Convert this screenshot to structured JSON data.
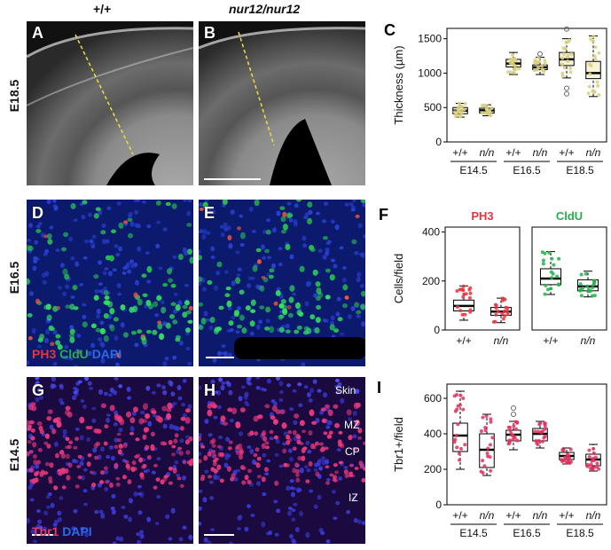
{
  "headers": {
    "col1": "+/+",
    "col2": "nur12/nur12"
  },
  "rows": {
    "r1": "E18.5",
    "r2": "E16.5",
    "r3": "E14.5"
  },
  "panels": {
    "A": "A",
    "B": "B",
    "C": "C",
    "D": "D",
    "E": "E",
    "F": "F",
    "G": "G",
    "H": "H",
    "I": "I"
  },
  "stains": {
    "de": {
      "ph3": "PH3",
      "cldu": "CldU",
      "dapi": "DAPI"
    },
    "gh": {
      "tbr1": "Tbr1",
      "dapi": "DAPI"
    }
  },
  "region_labels": {
    "skin": "Skin",
    "mz": "MZ",
    "cp": "CP",
    "iz": "IZ"
  },
  "colors": {
    "ph3": "#e8343f",
    "cldu": "#22b04b",
    "tbr1": "#e8386a",
    "dapi": "#2a4fd8",
    "yellow_dash": "#e8e23a"
  },
  "chart_data": [
    {
      "id": "C",
      "type": "box",
      "ylabel": "Thickness (µm)",
      "ylim": [
        0,
        1650
      ],
      "yticks": [
        0,
        500,
        1000,
        1500
      ],
      "categories": [
        "+/+",
        "n/n",
        "+/+",
        "n/n",
        "+/+",
        "n/n"
      ],
      "groups": [
        "E14.5",
        "E16.5",
        "E18.5"
      ],
      "boxes": [
        {
          "q1": 410,
          "median": 455,
          "q3": 500,
          "whislo": 360,
          "whishi": 560,
          "outliers": []
        },
        {
          "q1": 420,
          "median": 460,
          "q3": 490,
          "whislo": 380,
          "whishi": 540,
          "outliers": []
        },
        {
          "q1": 1090,
          "median": 1140,
          "q3": 1200,
          "whislo": 980,
          "whishi": 1300,
          "outliers": []
        },
        {
          "q1": 1050,
          "median": 1085,
          "q3": 1120,
          "whislo": 980,
          "whishi": 1230,
          "outliers": [
            1280
          ]
        },
        {
          "q1": 1110,
          "median": 1200,
          "q3": 1300,
          "whislo": 930,
          "whishi": 1500,
          "outliers": [
            1640,
            780,
            700
          ]
        },
        {
          "q1": 920,
          "median": 1000,
          "q3": 1170,
          "whislo": 660,
          "whishi": 1540,
          "outliers": []
        }
      ]
    },
    {
      "id": "F",
      "type": "box",
      "ylabel": "Cells/field",
      "ylim": [
        0,
        420
      ],
      "yticks": [
        0,
        200,
        400
      ],
      "subplots": [
        {
          "title": "PH3",
          "color": "#e8343f",
          "categories": [
            "+/+",
            "n/n"
          ],
          "boxes": [
            {
              "q1": 78,
              "median": 98,
              "q3": 122,
              "whislo": 40,
              "whishi": 180,
              "outliers": []
            },
            {
              "q1": 60,
              "median": 75,
              "q3": 92,
              "whislo": 30,
              "whishi": 130,
              "outliers": []
            }
          ]
        },
        {
          "title": "CldU",
          "color": "#22b04b",
          "categories": [
            "+/+",
            "n/n"
          ],
          "boxes": [
            {
              "q1": 185,
              "median": 210,
              "q3": 250,
              "whislo": 145,
              "whishi": 320,
              "outliers": []
            },
            {
              "q1": 160,
              "median": 178,
              "q3": 205,
              "whislo": 135,
              "whishi": 240,
              "outliers": []
            }
          ]
        }
      ]
    },
    {
      "id": "I",
      "type": "box",
      "ylabel": "Tbr1+/field",
      "ylim": [
        0,
        680
      ],
      "yticks": [
        0,
        200,
        400,
        600
      ],
      "categories": [
        "+/+",
        "n/n",
        "+/+",
        "n/n",
        "+/+",
        "n/n"
      ],
      "groups": [
        "E14.5",
        "E16.5",
        "E18.5"
      ],
      "boxes": [
        {
          "q1": 300,
          "median": 390,
          "q3": 460,
          "whislo": 200,
          "whishi": 640,
          "outliers": []
        },
        {
          "q1": 210,
          "median": 310,
          "q3": 400,
          "whislo": 165,
          "whishi": 510,
          "outliers": []
        },
        {
          "q1": 360,
          "median": 395,
          "q3": 420,
          "whislo": 310,
          "whishi": 470,
          "outliers": [
            510,
            545
          ]
        },
        {
          "q1": 360,
          "median": 400,
          "q3": 430,
          "whislo": 320,
          "whishi": 470,
          "outliers": []
        },
        {
          "q1": 255,
          "median": 275,
          "q3": 295,
          "whislo": 230,
          "whishi": 320,
          "outliers": []
        },
        {
          "q1": 220,
          "median": 255,
          "q3": 285,
          "whislo": 190,
          "whishi": 340,
          "outliers": []
        }
      ]
    }
  ]
}
